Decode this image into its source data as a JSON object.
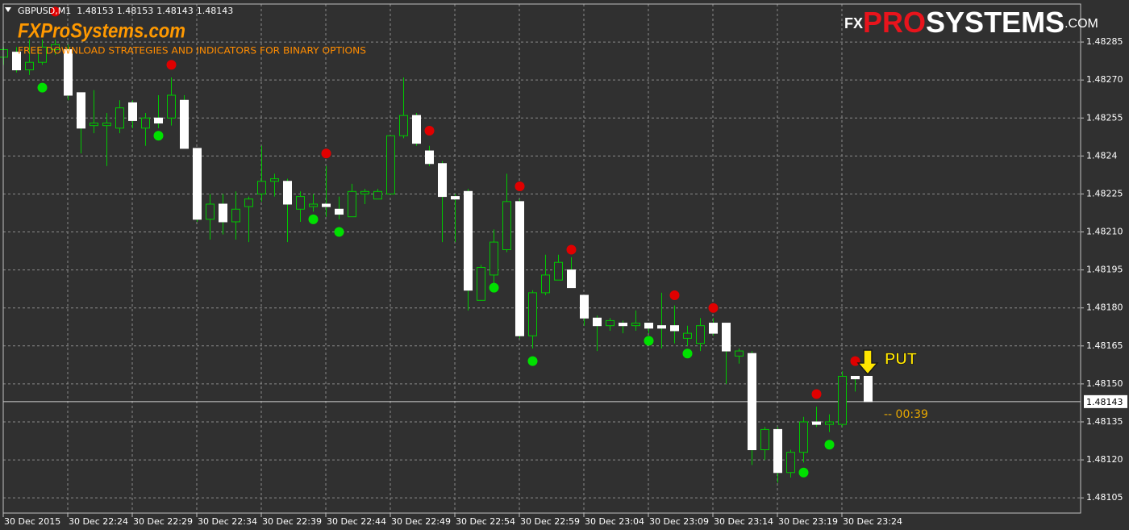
{
  "chart_data": {
    "type": "candlestick",
    "symbol": "GBPUSD,M1",
    "header_ohlc": [
      1.48153,
      1.48153,
      1.48143,
      1.48143
    ],
    "categories": [
      "30 Dec 2015",
      null,
      null,
      null,
      null,
      "30 Dec 22:24",
      null,
      null,
      null,
      null,
      "30 Dec 22:29",
      null,
      null,
      null,
      null,
      "30 Dec 22:34",
      null,
      null,
      null,
      null,
      "30 Dec 22:39",
      null,
      null,
      null,
      null,
      "30 Dec 22:44",
      null,
      null,
      null,
      null,
      "30 Dec 22:49",
      null,
      null,
      null,
      null,
      "30 Dec 22:54",
      null,
      null,
      null,
      null,
      "30 Dec 22:59",
      null,
      null,
      null,
      null,
      "30 Dec 23:04",
      null,
      null,
      null,
      null,
      "30 Dec 23:09",
      null,
      null,
      null,
      null,
      "30 Dec 23:14",
      null,
      null,
      null,
      null,
      "30 Dec 23:19",
      null,
      null,
      null,
      null,
      "30 Dec 23:24",
      null,
      null
    ],
    "open": [
      1.48279,
      1.48281,
      1.48274,
      1.48277,
      1.48282,
      1.48282,
      1.48265,
      1.48252,
      1.48252,
      1.48251,
      1.48261,
      1.48251,
      1.48255,
      1.48255,
      1.48262,
      1.48243,
      1.48215,
      1.48221,
      1.48214,
      1.4822,
      1.48225,
      1.4823,
      1.4823,
      1.48219,
      1.4822,
      1.48221,
      1.48219,
      1.48216,
      1.48225,
      1.48223,
      1.48225,
      1.48248,
      1.48256,
      1.48242,
      1.48237,
      1.48224,
      1.48226,
      1.48183,
      1.48193,
      1.48203,
      1.48222,
      1.48169,
      1.48186,
      1.48191,
      1.48195,
      1.48185,
      1.48176,
      1.48173,
      1.48174,
      1.48173,
      1.48174,
      1.48173,
      1.48173,
      1.48168,
      1.48166,
      1.48174,
      1.48174,
      1.48161,
      1.48162,
      1.48124,
      1.48132,
      1.48115,
      1.48123,
      1.48135,
      1.48134,
      1.48134,
      1.48153,
      1.48153
    ],
    "high": [
      1.48283,
      1.48283,
      1.48286,
      1.48286,
      1.48286,
      1.48284,
      1.48265,
      1.48266,
      1.48257,
      1.48262,
      1.48262,
      1.48257,
      1.48264,
      1.48271,
      1.48264,
      1.48243,
      1.48225,
      1.48225,
      1.48226,
      1.48224,
      1.48244,
      1.48233,
      1.48231,
      1.48226,
      1.48225,
      1.48236,
      1.48224,
      1.48229,
      1.48227,
      1.48227,
      1.48248,
      1.48271,
      1.48257,
      1.48244,
      1.48238,
      1.48225,
      1.48227,
      1.48197,
      1.48211,
      1.48233,
      1.48223,
      1.48187,
      1.48201,
      1.48201,
      1.482,
      1.48185,
      1.48177,
      1.48176,
      1.48175,
      1.48179,
      1.48174,
      1.48186,
      1.48181,
      1.48173,
      1.48176,
      1.48176,
      1.48174,
      1.48164,
      1.48163,
      1.48133,
      1.48133,
      1.48124,
      1.48137,
      1.48141,
      1.48138,
      1.48155,
      1.48153,
      1.48153
    ],
    "low": [
      1.48276,
      1.48273,
      1.48272,
      1.48276,
      1.4828,
      1.48262,
      1.48241,
      1.48249,
      1.48236,
      1.48249,
      1.48251,
      1.48244,
      1.48251,
      1.48252,
      1.48243,
      1.48214,
      1.48207,
      1.48209,
      1.48207,
      1.48206,
      1.48222,
      1.48224,
      1.48206,
      1.48214,
      1.48218,
      1.48216,
      1.48215,
      1.48216,
      1.48221,
      1.48223,
      1.48225,
      1.48247,
      1.48244,
      1.48236,
      1.48206,
      1.48206,
      1.48179,
      1.48183,
      1.48189,
      1.48202,
      1.48168,
      1.48164,
      1.48185,
      1.48191,
      1.48188,
      1.48173,
      1.48163,
      1.48171,
      1.4817,
      1.48171,
      1.4817,
      1.48164,
      1.48166,
      1.48165,
      1.48163,
      1.48169,
      1.4815,
      1.48158,
      1.48118,
      1.4812,
      1.48111,
      1.48113,
      1.48119,
      1.48133,
      1.48131,
      1.48133,
      1.48147,
      1.48143
    ],
    "close": [
      1.48282,
      1.48274,
      1.48277,
      1.48283,
      1.48284,
      1.48264,
      1.48251,
      1.48253,
      1.48253,
      1.48259,
      1.48254,
      1.48255,
      1.48253,
      1.48264,
      1.48243,
      1.48215,
      1.48221,
      1.48214,
      1.48219,
      1.48223,
      1.4823,
      1.48231,
      1.48221,
      1.48224,
      1.48221,
      1.4822,
      1.48217,
      1.48226,
      1.48226,
      1.48226,
      1.48248,
      1.48256,
      1.48245,
      1.48237,
      1.48224,
      1.48223,
      1.48187,
      1.48196,
      1.48206,
      1.48222,
      1.48169,
      1.48186,
      1.48193,
      1.48198,
      1.48188,
      1.48176,
      1.48173,
      1.48175,
      1.48173,
      1.48174,
      1.48172,
      1.48172,
      1.48171,
      1.4817,
      1.48173,
      1.4817,
      1.48163,
      1.48163,
      1.48124,
      1.48132,
      1.48115,
      1.48123,
      1.48135,
      1.48134,
      1.48135,
      1.48153,
      1.48152,
      1.48143
    ],
    "sell_signals": {
      "color": "#e00000",
      "values": [
        null,
        null,
        null,
        null,
        1.48297,
        null,
        null,
        null,
        null,
        null,
        null,
        null,
        null,
        1.48276,
        null,
        null,
        null,
        null,
        null,
        null,
        null,
        null,
        null,
        null,
        null,
        1.48241,
        null,
        null,
        null,
        null,
        null,
        null,
        null,
        1.4825,
        null,
        null,
        null,
        null,
        null,
        null,
        1.48228,
        null,
        null,
        null,
        1.48203,
        null,
        null,
        null,
        null,
        null,
        null,
        null,
        1.48185,
        null,
        null,
        1.4818,
        null,
        null,
        null,
        null,
        null,
        null,
        null,
        1.48146,
        null,
        null,
        1.48159,
        null
      ]
    },
    "buy_signals": {
      "color": "#00e000",
      "values": [
        null,
        null,
        null,
        1.48267,
        null,
        null,
        null,
        null,
        null,
        null,
        null,
        null,
        1.48248,
        null,
        null,
        null,
        null,
        null,
        null,
        null,
        null,
        null,
        null,
        null,
        1.48215,
        null,
        1.4821,
        null,
        null,
        null,
        null,
        null,
        null,
        null,
        null,
        null,
        null,
        null,
        1.48188,
        null,
        null,
        1.48159,
        null,
        null,
        null,
        null,
        null,
        null,
        null,
        null,
        1.48167,
        null,
        null,
        1.48162,
        null,
        null,
        null,
        null,
        null,
        null,
        null,
        null,
        1.48115,
        null,
        1.48126,
        null,
        null,
        null
      ]
    },
    "up_color": "#00c800",
    "down_color": "#ffffff",
    "ylim": [
      1.48099,
      1.483
    ],
    "yticks": [
      1.48285,
      {
        "value": 1.4827,
        "label": "1.48270"
      },
      1.48255,
      1.4824,
      1.48225,
      {
        "value": 1.4821,
        "label": "1.48210"
      },
      1.48195,
      {
        "value": 1.4818,
        "label": "1.48180"
      },
      1.48165,
      {
        "value": 1.4815,
        "label": "1.48150"
      },
      1.48135,
      {
        "value": 1.4812,
        "label": "1.48120"
      },
      1.48105
    ],
    "grid": true,
    "current_price": 1.48143,
    "signal_label": "PUT",
    "timer": "-- 00:39"
  },
  "branding": {
    "site": "FXProSystems.com",
    "tagline": "FREE DOWNLOAD STRATEGIES AND INDICATORS FOR BINARY OPTIONS",
    "logo": [
      "FX",
      "PRO",
      "SYSTEMS",
      ".COM"
    ]
  }
}
